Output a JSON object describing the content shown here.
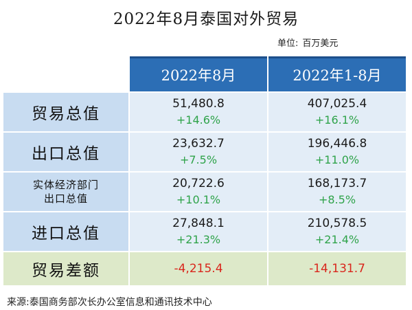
{
  "title": "2022年8月泰国对外贸易",
  "unit": {
    "label": "单位:",
    "value": "百万美元"
  },
  "columns": [
    "2022年8月",
    "2022年1-8月"
  ],
  "rows": [
    {
      "label": "贸易总值",
      "aug": "51,480.8",
      "aug_pct": "+14.6%",
      "ytd": "407,025.4",
      "ytd_pct": "+16.1%"
    },
    {
      "label": "出口总值",
      "aug": "23,632.7",
      "aug_pct": "+7.5%",
      "ytd": "196,446.8",
      "ytd_pct": "+11.0%"
    },
    {
      "label_line1": "实体经济部门",
      "label_line2": "出口总值",
      "aug": "20,722.6",
      "aug_pct": "+10.1%",
      "ytd": "168,173.7",
      "ytd_pct": "+8.5%"
    },
    {
      "label": "进口总值",
      "aug": "27,848.1",
      "aug_pct": "+21.3%",
      "ytd": "210,578.5",
      "ytd_pct": "+21.4%"
    }
  ],
  "balance": {
    "label": "贸易差额",
    "aug": "-4,215.4",
    "ytd": "-14,131.7"
  },
  "source": "来源:泰国商务部次长办公室信息和通讯技术中心",
  "colors": {
    "header": "#2c6eb5",
    "label_bg": "#c8dcf1",
    "cell_bg": "#e3edf7",
    "balance_bg": "#dde9c9",
    "positive": "#2fa34a",
    "negative": "#d9261c"
  }
}
